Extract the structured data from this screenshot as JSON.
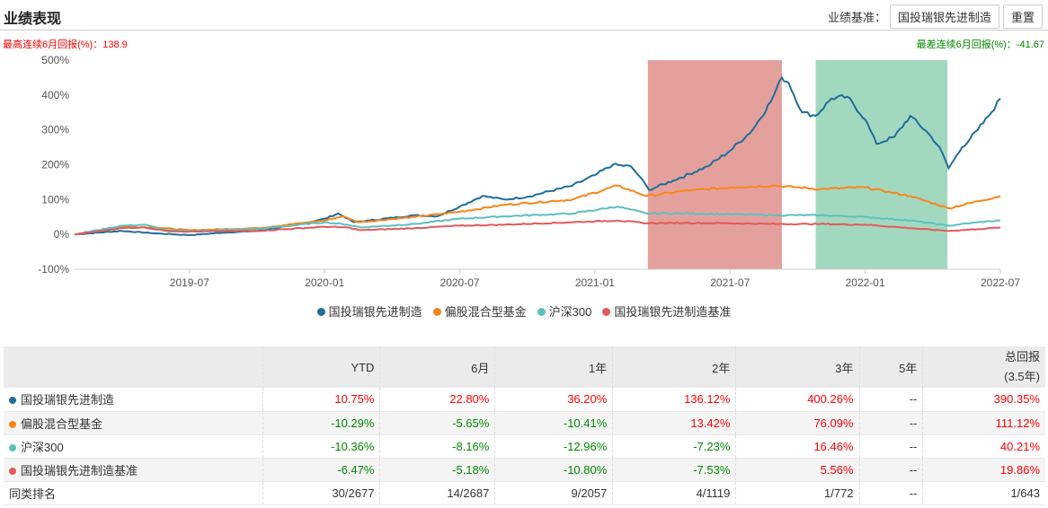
{
  "header": {
    "title": "业绩表现",
    "benchmark_label": "业绩基准：",
    "benchmark_button": "国投瑞银先进制造",
    "reset_button": "重置"
  },
  "stats": {
    "best": "最高连续6月回报(%)：138.9",
    "worst": "最差连续6月回报(%)：-41.67"
  },
  "colors": {
    "fund": "#1f6e9a",
    "mixed": "#f7861a",
    "hs300": "#5cc0c0",
    "bench": "#e05a5a",
    "best_zone": "#e4a09d",
    "worst_zone": "#a3d8c0"
  },
  "chart_data": {
    "type": "line",
    "x_unit": "months since 2019-01",
    "xlim": [
      0.9,
      42
    ],
    "ylim": [
      -100,
      500
    ],
    "yticks": [
      500,
      400,
      300,
      200,
      100,
      0,
      -100
    ],
    "ytick_labels": [
      "500%",
      "400%",
      "300%",
      "200%",
      "100%",
      "0%",
      "-100%"
    ],
    "xticks": [
      6,
      12,
      18,
      24,
      30,
      36,
      42
    ],
    "xtick_labels": [
      "2019-07",
      "2020-01",
      "2020-07",
      "2021-01",
      "2021-07",
      "2022-01",
      "2022-07"
    ],
    "shaded": [
      {
        "name": "best-6m",
        "from": 26.35,
        "to": 32.3
      },
      {
        "name": "worst-6m",
        "from": 33.8,
        "to": 39.65
      }
    ],
    "legend_position": "bottom",
    "series": [
      {
        "name": "国投瑞银先进制造",
        "color_key": "fund",
        "points": [
          [
            0.9,
            0
          ],
          [
            3,
            10
          ],
          [
            4.5,
            3
          ],
          [
            6,
            -2
          ],
          [
            7.5,
            5
          ],
          [
            9,
            10
          ],
          [
            11,
            30
          ],
          [
            12,
            45
          ],
          [
            12.6,
            60
          ],
          [
            13.3,
            35
          ],
          [
            14,
            40
          ],
          [
            16,
            55
          ],
          [
            17,
            52
          ],
          [
            18,
            80
          ],
          [
            19,
            110
          ],
          [
            20,
            100
          ],
          [
            21,
            108
          ],
          [
            23,
            140
          ],
          [
            24,
            170
          ],
          [
            24.8,
            200
          ],
          [
            25.6,
            195
          ],
          [
            26,
            165
          ],
          [
            26.4,
            128
          ],
          [
            27.5,
            155
          ],
          [
            29,
            195
          ],
          [
            30,
            240
          ],
          [
            31,
            300
          ],
          [
            31.8,
            380
          ],
          [
            32.3,
            450
          ],
          [
            32.6,
            435
          ],
          [
            33.2,
            350
          ],
          [
            33.8,
            340
          ],
          [
            34.5,
            390
          ],
          [
            35.2,
            395
          ],
          [
            36,
            330
          ],
          [
            36.5,
            260
          ],
          [
            37.3,
            280
          ],
          [
            38,
            340
          ],
          [
            38.8,
            290
          ],
          [
            39.3,
            250
          ],
          [
            39.7,
            190
          ],
          [
            40.3,
            250
          ],
          [
            41,
            300
          ],
          [
            41.6,
            350
          ],
          [
            42,
            390
          ]
        ]
      },
      {
        "name": "偏股混合型基金",
        "color_key": "mixed",
        "points": [
          [
            0.9,
            0
          ],
          [
            3,
            22
          ],
          [
            4.5,
            20
          ],
          [
            6,
            12
          ],
          [
            9,
            18
          ],
          [
            12,
            40
          ],
          [
            12.8,
            52
          ],
          [
            13.5,
            35
          ],
          [
            16,
            50
          ],
          [
            18,
            65
          ],
          [
            20,
            85
          ],
          [
            23,
            100
          ],
          [
            25,
            140
          ],
          [
            26.3,
            110
          ],
          [
            28,
            125
          ],
          [
            30,
            135
          ],
          [
            32,
            140
          ],
          [
            34,
            130
          ],
          [
            36,
            135
          ],
          [
            38,
            110
          ],
          [
            39.7,
            75
          ],
          [
            41,
            95
          ],
          [
            42,
            110
          ]
        ]
      },
      {
        "name": "沪深300",
        "color_key": "hs300",
        "points": [
          [
            0.9,
            0
          ],
          [
            3,
            25
          ],
          [
            4,
            28
          ],
          [
            5,
            12
          ],
          [
            6,
            10
          ],
          [
            9,
            15
          ],
          [
            12,
            35
          ],
          [
            13,
            28
          ],
          [
            13.6,
            20
          ],
          [
            16,
            30
          ],
          [
            18,
            45
          ],
          [
            20,
            52
          ],
          [
            23,
            60
          ],
          [
            25,
            80
          ],
          [
            26.3,
            60
          ],
          [
            28,
            60
          ],
          [
            30,
            58
          ],
          [
            32,
            55
          ],
          [
            34,
            55
          ],
          [
            36,
            50
          ],
          [
            38,
            40
          ],
          [
            39.7,
            25
          ],
          [
            41,
            35
          ],
          [
            42,
            40
          ]
        ]
      },
      {
        "name": "国投瑞银先进制造基准",
        "color_key": "bench",
        "points": [
          [
            0.9,
            0
          ],
          [
            3,
            18
          ],
          [
            4,
            20
          ],
          [
            5,
            10
          ],
          [
            6,
            8
          ],
          [
            9,
            10
          ],
          [
            12,
            22
          ],
          [
            13,
            20
          ],
          [
            13.6,
            12
          ],
          [
            16,
            18
          ],
          [
            18,
            25
          ],
          [
            20,
            28
          ],
          [
            23,
            35
          ],
          [
            25,
            40
          ],
          [
            26.3,
            32
          ],
          [
            28,
            33
          ],
          [
            30,
            32
          ],
          [
            32,
            30
          ],
          [
            34,
            30
          ],
          [
            36,
            28
          ],
          [
            38,
            18
          ],
          [
            39.7,
            10
          ],
          [
            41,
            15
          ],
          [
            42,
            20
          ]
        ]
      }
    ]
  },
  "table": {
    "headers": [
      "",
      "YTD",
      "6月",
      "1年",
      "2年",
      "3年",
      "5年"
    ],
    "total_header": "总回报",
    "total_sub": "(3.5年)",
    "rows": [
      {
        "name": "国投瑞银先进制造",
        "color_key": "fund",
        "values": [
          "10.75%",
          "22.80%",
          "36.20%",
          "136.12%",
          "400.26%",
          "--",
          "390.35%"
        ]
      },
      {
        "name": "偏股混合型基金",
        "color_key": "mixed",
        "values": [
          "-10.29%",
          "-5.65%",
          "-10.41%",
          "13.42%",
          "76.09%",
          "--",
          "111.12%"
        ]
      },
      {
        "name": "沪深300",
        "color_key": "hs300",
        "values": [
          "-10.36%",
          "-8.16%",
          "-12.96%",
          "-7.23%",
          "16.46%",
          "--",
          "40.21%"
        ]
      },
      {
        "name": "国投瑞银先进制造基准",
        "color_key": "bench",
        "values": [
          "-6.47%",
          "-5.18%",
          "-10.80%",
          "-7.53%",
          "5.56%",
          "--",
          "19.86%"
        ]
      }
    ],
    "rank": {
      "name": "同类排名",
      "values": [
        "30/2677",
        "14/2687",
        "9/2057",
        "4/1119",
        "1/772",
        "--",
        "1/643"
      ]
    }
  }
}
